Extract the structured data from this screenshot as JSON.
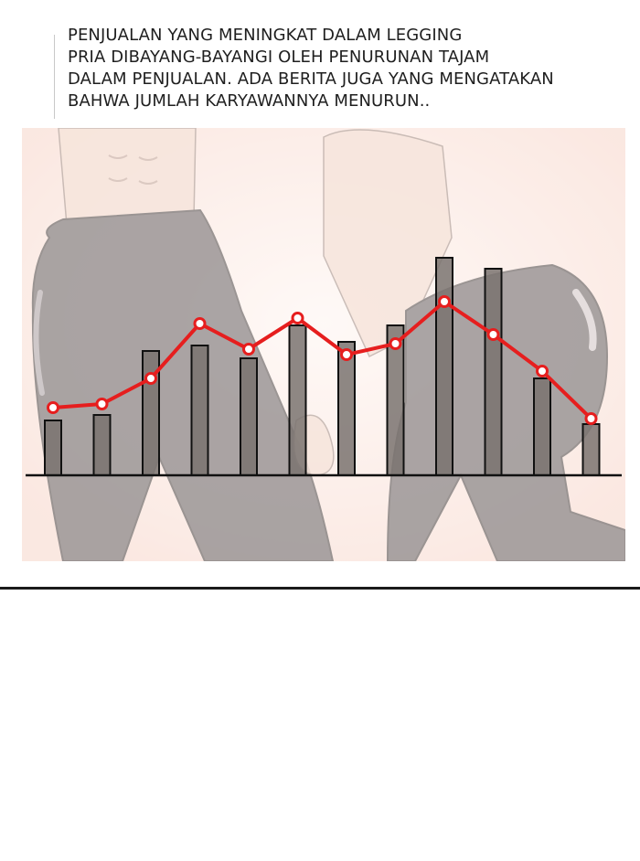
{
  "caption": {
    "lines": [
      "PENJUALAN YANG MENINGKAT DALAM LEGGING",
      "PRIA DIBAYANG-BAYANGI OLEH PENURUNAN TAJAM",
      "DALAM PENJUALAN. ADA BERITA JUGA YANG MENGATAKAN",
      "BAHWA JUMLAH KARYAWANNYA MENURUN.."
    ]
  },
  "colors": {
    "panel_background": "#fbeee9",
    "bar_fill": "#7a7370",
    "bar_stroke": "#111111",
    "trend_line": "#e61e1e",
    "leggings": "#4a4a4e",
    "skin": "#f0d9cc"
  },
  "chart_data": {
    "type": "bar",
    "categories": [
      "",
      "",
      "",
      "",
      "",
      "",
      "",
      "",
      "",
      "",
      "",
      ""
    ],
    "values": [
      30,
      33,
      68,
      71,
      64,
      82,
      73,
      82,
      119,
      113,
      53,
      28
    ],
    "trend": [
      37,
      39,
      53,
      83,
      69,
      86,
      66,
      72,
      95,
      77,
      57,
      31
    ],
    "ylim": [
      0,
      130
    ],
    "title": "",
    "xlabel": "",
    "ylabel": "",
    "grid": false
  }
}
